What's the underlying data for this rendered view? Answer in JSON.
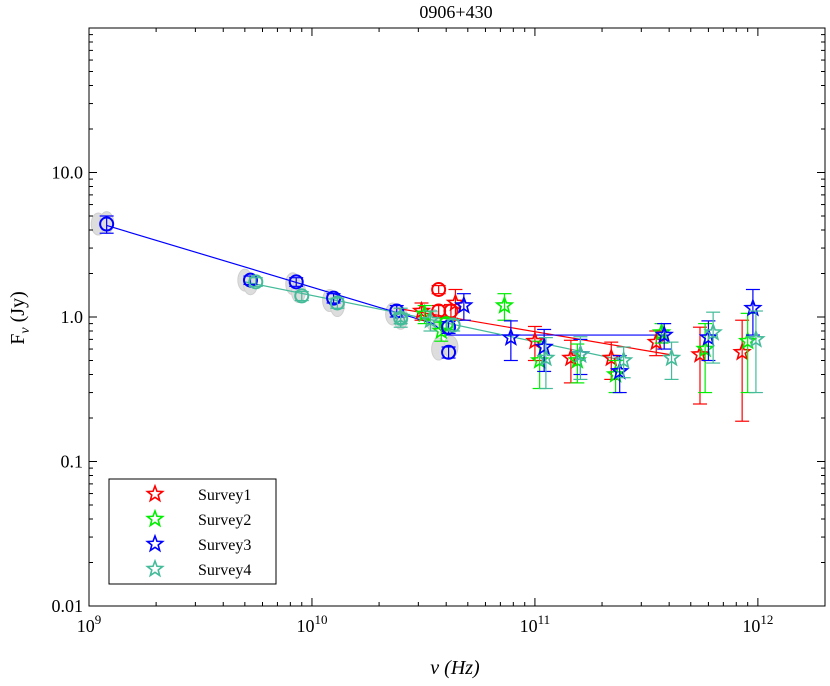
{
  "chart_data": {
    "type": "scatter",
    "title": "0906+430",
    "xlabel": "ν (Hz)",
    "ylabel_main": "F",
    "ylabel_sub": "ν",
    "ylabel_unit": " (Jy)",
    "xscale": "log",
    "yscale": "log",
    "xlim": [
      1000000000.0,
      2000000000000.0
    ],
    "ylim": [
      0.01,
      100
    ],
    "x_ticks": [
      {
        "value": 1000000000.0,
        "base": "10",
        "exp": "9"
      },
      {
        "value": 10000000000.0,
        "base": "10",
        "exp": "10"
      },
      {
        "value": 100000000000.0,
        "base": "10",
        "exp": "11"
      },
      {
        "value": 1000000000000.0,
        "base": "10",
        "exp": "12"
      }
    ],
    "y_ticks": [
      {
        "value": 0.01,
        "label": "0.01"
      },
      {
        "value": 0.1,
        "label": "0.1"
      },
      {
        "value": 1,
        "label": "1.0"
      },
      {
        "value": 10,
        "label": "10.0"
      }
    ],
    "legend": {
      "location": "bottom-left",
      "entries": [
        {
          "name": "Survey1",
          "color": "#ff0000"
        },
        {
          "name": "Survey2",
          "color": "#00ee00"
        },
        {
          "name": "Survey3",
          "color": "#0000ff"
        },
        {
          "name": "Survey4",
          "color": "#44bb99"
        }
      ]
    },
    "gray_points": [
      {
        "x": 1100000000.0,
        "y": 4.4
      },
      {
        "x": 1200000000.0,
        "y": 4.5
      },
      {
        "x": 5000000000.0,
        "y": 1.8
      },
      {
        "x": 5300000000.0,
        "y": 1.7
      },
      {
        "x": 8200000000.0,
        "y": 1.7
      },
      {
        "x": 8700000000.0,
        "y": 1.5
      },
      {
        "x": 12000000000.0,
        "y": 1.3
      },
      {
        "x": 13000000000.0,
        "y": 1.2
      },
      {
        "x": 23000000000.0,
        "y": 1.05
      },
      {
        "x": 25000000000.0,
        "y": 0.98
      },
      {
        "x": 35000000000.0,
        "y": 0.95
      },
      {
        "x": 37000000000.0,
        "y": 0.6
      },
      {
        "x": 42000000000.0,
        "y": 0.62
      }
    ],
    "series": [
      {
        "name": "Survey1",
        "color": "#ff0000",
        "circles": [
          {
            "x": 37000000000.0,
            "y": 1.55,
            "err": 0.1
          },
          {
            "x": 37000000000.0,
            "y": 1.1,
            "err": 0.1
          },
          {
            "x": 42000000000.0,
            "y": 1.1,
            "err": 0.12
          }
        ],
        "stars": [
          {
            "x": 31000000000.0,
            "y": 1.1,
            "err": 0.15
          },
          {
            "x": 44000000000.0,
            "y": 1.25,
            "err": 0.3
          },
          {
            "x": 100000000000.0,
            "y": 0.68,
            "err": 0.18
          },
          {
            "x": 145000000000.0,
            "y": 0.52,
            "err": 0.17
          },
          {
            "x": 220000000000.0,
            "y": 0.52,
            "err": 0.15
          },
          {
            "x": 350000000000.0,
            "y": 0.67,
            "err": 0.13
          },
          {
            "x": 550000000000.0,
            "y": 0.55,
            "err": 0.3
          },
          {
            "x": 850000000000.0,
            "y": 0.57,
            "err": 0.38
          }
        ],
        "fit": [
          {
            "x": 24000000000.0,
            "y": 1.15
          },
          {
            "x": 400000000000.0,
            "y": 0.55
          }
        ]
      },
      {
        "name": "Survey2",
        "color": "#00ee00",
        "circles": [
          {
            "x": 40000000000.0,
            "y": 0.9,
            "err": 0.08
          }
        ],
        "stars": [
          {
            "x": 32000000000.0,
            "y": 1.05,
            "err": 0.15
          },
          {
            "x": 38000000000.0,
            "y": 0.8,
            "err": 0.12
          },
          {
            "x": 73000000000.0,
            "y": 1.2,
            "err": 0.25
          },
          {
            "x": 105000000000.0,
            "y": 0.5,
            "err": 0.18
          },
          {
            "x": 155000000000.0,
            "y": 0.5,
            "err": 0.15
          },
          {
            "x": 230000000000.0,
            "y": 0.4,
            "err": 0.1
          },
          {
            "x": 370000000000.0,
            "y": 0.78,
            "err": 0.12
          },
          {
            "x": 580000000000.0,
            "y": 0.6,
            "err": 0.3
          },
          {
            "x": 900000000000.0,
            "y": 0.68,
            "err": 0.38
          }
        ],
        "fit": []
      },
      {
        "name": "Survey3",
        "color": "#0000ff",
        "circles": [
          {
            "x": 1200000000.0,
            "y": 4.4,
            "err": 0.6
          },
          {
            "x": 5300000000.0,
            "y": 1.8,
            "err": 0.12
          },
          {
            "x": 8500000000.0,
            "y": 1.75,
            "err": 0.12
          },
          {
            "x": 12500000000.0,
            "y": 1.35,
            "err": 0.1
          },
          {
            "x": 24000000000.0,
            "y": 1.1,
            "err": 0.1
          },
          {
            "x": 41000000000.0,
            "y": 0.85,
            "err": 0.08
          },
          {
            "x": 41000000000.0,
            "y": 0.57,
            "err": 0.05
          }
        ],
        "stars": [
          {
            "x": 48000000000.0,
            "y": 1.2,
            "err": 0.25
          },
          {
            "x": 78000000000.0,
            "y": 0.72,
            "err": 0.22
          },
          {
            "x": 110000000000.0,
            "y": 0.62,
            "err": 0.2
          },
          {
            "x": 160000000000.0,
            "y": 0.55,
            "err": 0.15
          },
          {
            "x": 240000000000.0,
            "y": 0.42,
            "err": 0.12
          },
          {
            "x": 380000000000.0,
            "y": 0.75,
            "err": 0.15
          },
          {
            "x": 600000000000.0,
            "y": 0.72,
            "err": 0.22
          },
          {
            "x": 950000000000.0,
            "y": 1.15,
            "err": 0.4
          }
        ],
        "fit": [
          {
            "x": 1200000000.0,
            "y": 4.3
          },
          {
            "x": 35000000000.0,
            "y": 0.9
          },
          {
            "x": 40000000000.0,
            "y": 0.75
          },
          {
            "x": 400000000000.0,
            "y": 0.75
          }
        ]
      },
      {
        "name": "Survey4",
        "color": "#44bb99",
        "circles": [
          {
            "x": 5600000000.0,
            "y": 1.75,
            "err": 0.12
          },
          {
            "x": 9000000000.0,
            "y": 1.4,
            "err": 0.1
          },
          {
            "x": 13000000000.0,
            "y": 1.25,
            "err": 0.1
          },
          {
            "x": 25000000000.0,
            "y": 0.98,
            "err": 0.08
          },
          {
            "x": 43000000000.0,
            "y": 0.88,
            "err": 0.08
          }
        ],
        "stars": [
          {
            "x": 25000000000.0,
            "y": 1.0,
            "err": 0.15
          },
          {
            "x": 34000000000.0,
            "y": 0.95,
            "err": 0.15
          },
          {
            "x": 112000000000.0,
            "y": 0.52,
            "err": 0.2
          },
          {
            "x": 160000000000.0,
            "y": 0.55,
            "err": 0.18
          },
          {
            "x": 250000000000.0,
            "y": 0.5,
            "err": 0.12
          },
          {
            "x": 410000000000.0,
            "y": 0.52,
            "err": 0.15
          },
          {
            "x": 630000000000.0,
            "y": 0.78,
            "err": 0.3
          },
          {
            "x": 980000000000.0,
            "y": 0.7,
            "err": 0.4
          }
        ],
        "fit": [
          {
            "x": 5000000000.0,
            "y": 1.75
          },
          {
            "x": 30000000000.0,
            "y": 1.0
          },
          {
            "x": 250000000000.0,
            "y": 0.5
          }
        ]
      }
    ]
  }
}
